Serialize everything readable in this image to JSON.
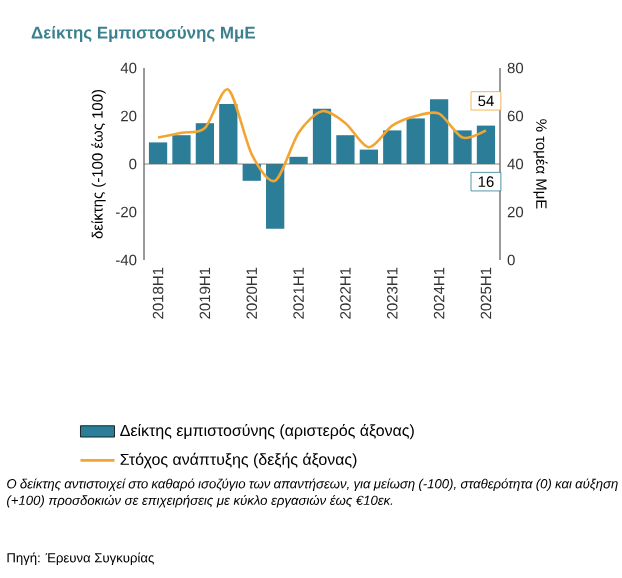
{
  "chart_data": {
    "type": "bar",
    "title": "Δείκτης Εμπιστοσύνης ΜμΕ",
    "ylabel": "δείκτης (-100 έως 100)",
    "y2label": "% τομέα ΜμΕ",
    "categories": [
      "2018H1",
      null,
      "2019H1",
      null,
      "2020H1",
      null,
      "2021H1",
      null,
      "2022H1",
      null,
      "2023H1",
      null,
      "2024H1",
      null,
      "2025H1"
    ],
    "series": [
      {
        "name": "Δείκτης εμπιστοσύνης (αριστερός άξονας)",
        "color": "#2b7d98",
        "values": [
          9,
          12,
          17,
          25,
          -7,
          -27,
          3,
          23,
          12,
          6,
          14,
          19,
          27,
          14,
          16
        ],
        "value_labels": [
          null,
          null,
          null,
          null,
          null,
          null,
          null,
          null,
          null,
          null,
          null,
          null,
          null,
          null,
          "16"
        ]
      },
      {
        "name": "Στόχος ανάπτυξης (δεξής άξονας)",
        "type": "line",
        "axis": "y2",
        "color": "#f2a530",
        "values": [
          51,
          53,
          55,
          71,
          44,
          33,
          53,
          62,
          57,
          47,
          56,
          60,
          61,
          51,
          54
        ],
        "value_labels": [
          null,
          null,
          null,
          null,
          null,
          null,
          null,
          null,
          null,
          null,
          null,
          null,
          null,
          null,
          "54"
        ]
      }
    ],
    "ylim": [
      -40,
      40
    ],
    "yticks": [
      -40,
      -20,
      0,
      20,
      40
    ],
    "y2lim": [
      0,
      80
    ],
    "y2ticks": [
      0,
      20,
      40,
      60,
      80
    ],
    "legend": "bottom",
    "marker": "none",
    "annotations": [
      "*Ο δείκτης αντιστοιχεί στο καθαρό ισοζύγιο των απαντήσεων, για μείωση (-100), σταθερότητα (0) και αύξηση (+100) προσδοκιών σε επιχειρήσεις με κύκλο εργασιών έως €10εκ.*",
      "Πηγή: Έρευνα Συγκυρίας"
    ]
  }
}
